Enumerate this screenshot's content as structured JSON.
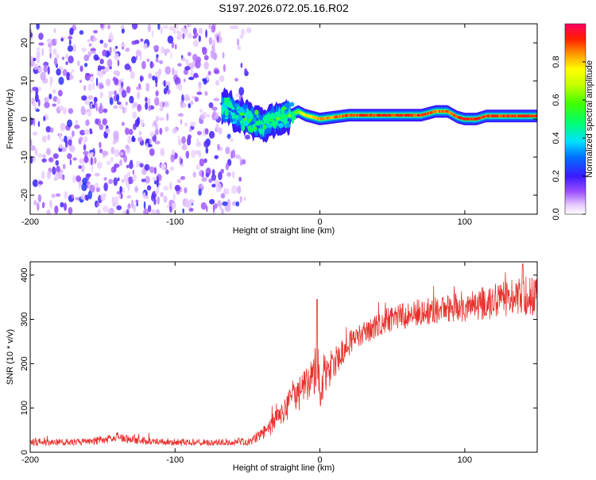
{
  "page_title": "S197.2026.072.05.16.R02",
  "chart_data": [
    {
      "type": "heatmap",
      "name": "spectrogram",
      "title": "S197.2026.072.05.16.R02",
      "xlabel": "Height of straight line (km)",
      "ylabel": "Frequency (Hz)",
      "xlim": [
        -200,
        150
      ],
      "ylim": [
        -25,
        25
      ],
      "xticks": [
        -200,
        -100,
        0,
        100
      ],
      "xtick_labels": [
        "-200",
        "-100",
        "0",
        "100"
      ],
      "yticks": [
        -20,
        -10,
        0,
        10,
        20
      ],
      "ytick_labels": [
        "-20",
        "-10",
        "0",
        "10",
        "20"
      ],
      "noise_region": {
        "x_range": [
          -200,
          -50
        ],
        "description_values": "scattered low-amplitude speckles, amplitude 0.05-0.25"
      },
      "ridge": {
        "x": [
          -68,
          -60,
          -50,
          -40,
          -30,
          -20,
          -15,
          -10,
          0,
          10,
          20,
          30,
          40,
          50,
          60,
          70,
          80,
          88,
          95,
          100,
          108,
          115,
          125,
          140,
          150
        ],
        "frequency": [
          4,
          2,
          0,
          -2,
          0,
          1,
          2,
          1,
          0,
          0.5,
          1,
          1,
          1,
          1,
          1,
          1,
          2,
          2,
          0.5,
          0,
          0,
          0.8,
          0.8,
          0.8,
          0.8
        ],
        "amplitude": [
          0.35,
          0.3,
          0.3,
          0.35,
          0.55,
          0.7,
          0.6,
          0.8,
          0.85,
          0.9,
          0.92,
          0.93,
          0.94,
          0.95,
          0.95,
          0.95,
          0.9,
          0.9,
          0.95,
          0.95,
          0.95,
          0.95,
          0.95,
          0.95,
          0.95
        ]
      },
      "colorbar": {
        "label": "Normalized spectral amplitude",
        "range": [
          0,
          1
        ],
        "ticks": [
          0.0,
          0.2,
          0.4,
          0.6,
          0.8
        ],
        "tick_labels": [
          "0.0",
          "0.2",
          "0.4",
          "0.6",
          "0.8"
        ]
      }
    },
    {
      "type": "line",
      "name": "snr",
      "xlabel": "Height of straight line (km)",
      "ylabel": "SNR (10 * v/v)",
      "xlim": [
        -200,
        150
      ],
      "ylim": [
        0,
        430
      ],
      "xticks": [
        -200,
        -100,
        0,
        100
      ],
      "xtick_labels": [
        "-200",
        "-100",
        "0",
        "100"
      ],
      "yticks": [
        0,
        100,
        200,
        300,
        400
      ],
      "ytick_labels": [
        "0",
        "100",
        "200",
        "300",
        "400"
      ],
      "color": "#e8312d",
      "series": [
        {
          "name": "SNR",
          "envelope_x": [
            -200,
            -180,
            -160,
            -145,
            -140,
            -130,
            -110,
            -90,
            -70,
            -60,
            -50,
            -45,
            -40,
            -35,
            -30,
            -25,
            -20,
            -15,
            -10,
            -5,
            -2,
            0,
            5,
            10,
            15,
            20,
            30,
            40,
            50,
            60,
            80,
            100,
            120,
            140,
            150
          ],
          "envelope_mean": [
            22,
            22,
            24,
            30,
            35,
            28,
            24,
            22,
            22,
            22,
            24,
            30,
            40,
            55,
            75,
            95,
            115,
            130,
            150,
            175,
            200,
            140,
            175,
            200,
            225,
            245,
            270,
            290,
            300,
            310,
            320,
            330,
            340,
            350,
            355
          ],
          "envelope_spread": [
            8,
            8,
            8,
            10,
            10,
            9,
            8,
            8,
            7,
            7,
            9,
            12,
            15,
            20,
            25,
            30,
            35,
            40,
            40,
            45,
            70,
            40,
            35,
            35,
            30,
            28,
            28,
            30,
            30,
            30,
            32,
            35,
            40,
            45,
            45
          ]
        }
      ],
      "spike_points": [
        {
          "x": -2,
          "y": 345
        },
        {
          "x": 140,
          "y": 425
        }
      ]
    }
  ]
}
